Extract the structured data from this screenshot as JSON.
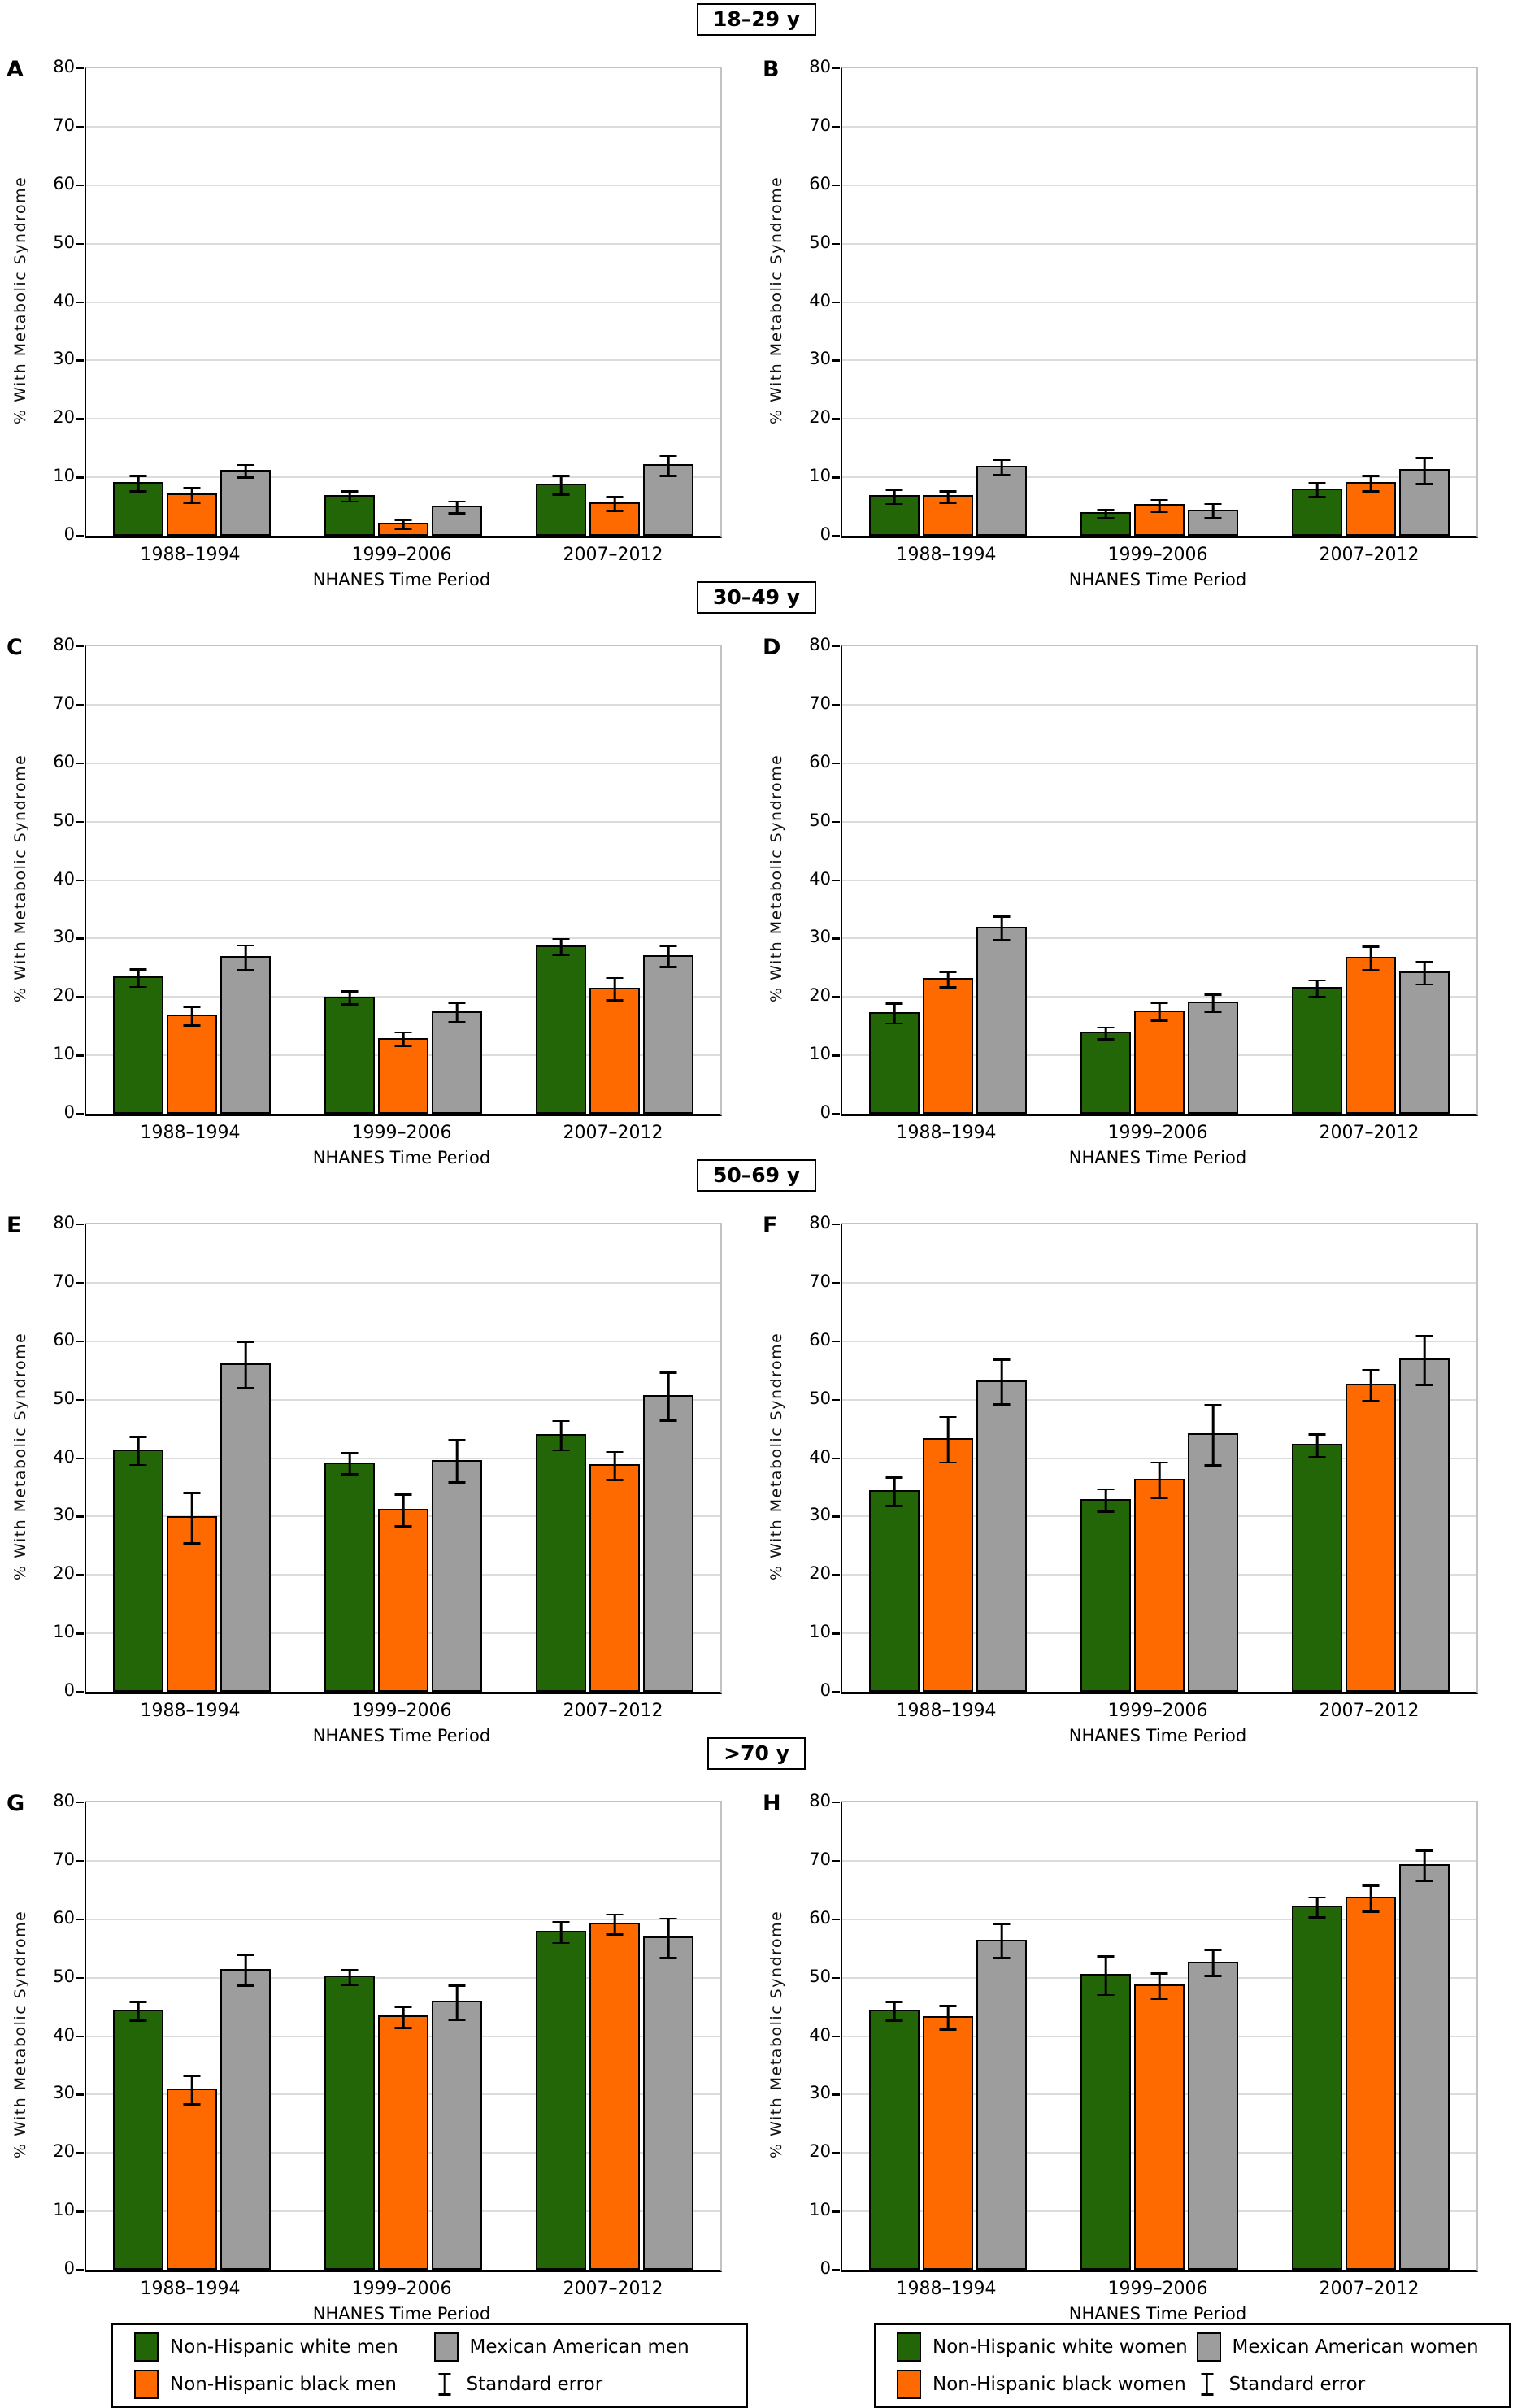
{
  "figure": {
    "sections": [
      {
        "title": "18–29 y"
      },
      {
        "title": "30–49 y"
      },
      {
        "title": "50–69 y"
      },
      {
        "title": ">70 y"
      }
    ],
    "legend_left": {
      "items": [
        {
          "label": "Non-Hispanic white men",
          "color": "#226608"
        },
        {
          "label": "Non-Hispanic black men",
          "color": "#ff6a00"
        },
        {
          "label": "Mexican American men",
          "color": "#9d9d9d"
        },
        {
          "label": "Standard error",
          "glyph": "error-bar-icon"
        }
      ]
    },
    "legend_right": {
      "items": [
        {
          "label": "Non-Hispanic white women",
          "color": "#226608"
        },
        {
          "label": "Non-Hispanic black women",
          "color": "#ff6a00"
        },
        {
          "label": "Mexican American women",
          "color": "#9d9d9d"
        },
        {
          "label": "Standard error",
          "glyph": "error-bar-icon"
        }
      ]
    }
  },
  "chart_data": [
    {
      "type": "bar",
      "panel": "A",
      "age_group": "18–29 y",
      "sex": "men",
      "ylabel": "% With Metabolic Syndrome",
      "xlabel": "NHANES Time Period",
      "ylim": [
        0,
        80
      ],
      "yticks": [
        0,
        10,
        20,
        30,
        40,
        50,
        60,
        70,
        80
      ],
      "grid": "horizontal",
      "categories": [
        "1988–1994",
        "1999–2006",
        "2007–2012"
      ],
      "series": [
        {
          "name": "Non-Hispanic white men",
          "color": "#226608",
          "values": [
            9.2,
            7.0,
            8.9
          ],
          "se": [
            1.3,
            0.9,
            1.6
          ]
        },
        {
          "name": "Non-Hispanic black men",
          "color": "#ff6a00",
          "values": [
            7.2,
            2.2,
            5.7
          ],
          "se": [
            1.3,
            0.8,
            1.2
          ]
        },
        {
          "name": "Mexican American men",
          "color": "#9d9d9d",
          "values": [
            11.3,
            5.1,
            12.2
          ],
          "se": [
            1.1,
            1.0,
            1.7
          ]
        }
      ]
    },
    {
      "type": "bar",
      "panel": "B",
      "age_group": "18–29 y",
      "sex": "women",
      "ylabel": "% With Metabolic Syndrome",
      "xlabel": "NHANES Time Period",
      "ylim": [
        0,
        80
      ],
      "yticks": [
        0,
        10,
        20,
        30,
        40,
        50,
        60,
        70,
        80
      ],
      "grid": "horizontal",
      "categories": [
        "1988–1994",
        "1999–2006",
        "2007–2012"
      ],
      "series": [
        {
          "name": "Non-Hispanic white women",
          "color": "#226608",
          "values": [
            6.9,
            4.0,
            8.1
          ],
          "se": [
            1.2,
            0.7,
            1.2
          ]
        },
        {
          "name": "Non-Hispanic black women",
          "color": "#ff6a00",
          "values": [
            6.9,
            5.4,
            9.2
          ],
          "se": [
            1.0,
            1.0,
            1.3
          ]
        },
        {
          "name": "Mexican American women",
          "color": "#9d9d9d",
          "values": [
            12.0,
            4.5,
            11.4
          ],
          "se": [
            1.3,
            1.2,
            2.2
          ]
        }
      ]
    },
    {
      "type": "bar",
      "panel": "C",
      "age_group": "30–49 y",
      "sex": "men",
      "ylabel": "% With Metabolic Syndrome",
      "xlabel": "NHANES Time Period",
      "ylim": [
        0,
        80
      ],
      "yticks": [
        0,
        10,
        20,
        30,
        40,
        50,
        60,
        70,
        80
      ],
      "grid": "horizontal",
      "categories": [
        "1988–1994",
        "1999–2006",
        "2007–2012"
      ],
      "series": [
        {
          "name": "Non-Hispanic white men",
          "color": "#226608",
          "values": [
            23.5,
            20.1,
            28.8
          ],
          "se": [
            1.5,
            1.1,
            1.4
          ]
        },
        {
          "name": "Non-Hispanic black men",
          "color": "#ff6a00",
          "values": [
            17.0,
            13.0,
            21.6
          ],
          "se": [
            1.6,
            1.2,
            1.9
          ]
        },
        {
          "name": "Mexican American men",
          "color": "#9d9d9d",
          "values": [
            27.0,
            17.6,
            27.2
          ],
          "se": [
            2.1,
            1.6,
            1.8
          ]
        }
      ]
    },
    {
      "type": "bar",
      "panel": "D",
      "age_group": "30–49 y",
      "sex": "women",
      "ylabel": "% With Metabolic Syndrome",
      "xlabel": "NHANES Time Period",
      "ylim": [
        0,
        80
      ],
      "yticks": [
        0,
        10,
        20,
        30,
        40,
        50,
        60,
        70,
        80
      ],
      "grid": "horizontal",
      "categories": [
        "1988–1994",
        "1999–2006",
        "2007–2012"
      ],
      "series": [
        {
          "name": "Non-Hispanic white women",
          "color": "#226608",
          "values": [
            17.4,
            14.0,
            21.7
          ],
          "se": [
            1.7,
            1.0,
            1.4
          ]
        },
        {
          "name": "Non-Hispanic black women",
          "color": "#ff6a00",
          "values": [
            23.2,
            17.7,
            26.9
          ],
          "se": [
            1.3,
            1.5,
            2.0
          ]
        },
        {
          "name": "Mexican American women",
          "color": "#9d9d9d",
          "values": [
            32.0,
            19.2,
            24.3
          ],
          "se": [
            2.0,
            1.5,
            1.9
          ]
        }
      ]
    },
    {
      "type": "bar",
      "panel": "E",
      "age_group": "50–69 y",
      "sex": "men",
      "ylabel": "% With Metabolic Syndrome",
      "xlabel": "NHANES Time Period",
      "ylim": [
        0,
        80
      ],
      "yticks": [
        0,
        10,
        20,
        30,
        40,
        50,
        60,
        70,
        80
      ],
      "grid": "horizontal",
      "categories": [
        "1988–1994",
        "1999–2006",
        "2007–2012"
      ],
      "series": [
        {
          "name": "Non-Hispanic white men",
          "color": "#226608",
          "values": [
            41.5,
            39.3,
            44.1
          ],
          "se": [
            2.4,
            1.8,
            2.5
          ]
        },
        {
          "name": "Non-Hispanic black men",
          "color": "#ff6a00",
          "values": [
            30.0,
            31.3,
            38.9
          ],
          "se": [
            4.3,
            2.7,
            2.4
          ]
        },
        {
          "name": "Mexican American men",
          "color": "#9d9d9d",
          "values": [
            56.2,
            39.7,
            50.8
          ],
          "se": [
            3.9,
            3.6,
            4.1
          ]
        }
      ]
    },
    {
      "type": "bar",
      "panel": "F",
      "age_group": "50–69 y",
      "sex": "women",
      "ylabel": "% With Metabolic Syndrome",
      "xlabel": "NHANES Time Period",
      "ylim": [
        0,
        80
      ],
      "yticks": [
        0,
        10,
        20,
        30,
        40,
        50,
        60,
        70,
        80
      ],
      "grid": "horizontal",
      "categories": [
        "1988–1994",
        "1999–2006",
        "2007–2012"
      ],
      "series": [
        {
          "name": "Non-Hispanic white women",
          "color": "#226608",
          "values": [
            34.5,
            33.0,
            42.4
          ],
          "se": [
            2.4,
            1.9,
            1.9
          ]
        },
        {
          "name": "Non-Hispanic black women",
          "color": "#ff6a00",
          "values": [
            43.4,
            36.5,
            52.7
          ],
          "se": [
            3.9,
            3.0,
            2.7
          ]
        },
        {
          "name": "Mexican American women",
          "color": "#9d9d9d",
          "values": [
            53.3,
            44.2,
            57.0
          ],
          "se": [
            3.8,
            5.2,
            4.2
          ]
        }
      ]
    },
    {
      "type": "bar",
      "panel": "G",
      "age_group": ">70 y",
      "sex": "men",
      "ylabel": "% With Metabolic Syndrome",
      "xlabel": "NHANES Time Period",
      "ylim": [
        0,
        80
      ],
      "yticks": [
        0,
        10,
        20,
        30,
        40,
        50,
        60,
        70,
        80
      ],
      "grid": "horizontal",
      "categories": [
        "1988–1994",
        "1999–2006",
        "2007–2012"
      ],
      "series": [
        {
          "name": "Non-Hispanic white men",
          "color": "#226608",
          "values": [
            44.5,
            50.3,
            58.0
          ],
          "se": [
            1.6,
            1.3,
            1.8
          ]
        },
        {
          "name": "Non-Hispanic black men",
          "color": "#ff6a00",
          "values": [
            31.0,
            43.5,
            59.4
          ],
          "se": [
            2.4,
            1.8,
            1.7
          ]
        },
        {
          "name": "Mexican American men",
          "color": "#9d9d9d",
          "values": [
            51.5,
            46.0,
            57.0
          ],
          "se": [
            2.6,
            2.9,
            3.4
          ]
        }
      ]
    },
    {
      "type": "bar",
      "panel": "H",
      "age_group": ">70 y",
      "sex": "women",
      "ylabel": "% With Metabolic Syndrome",
      "xlabel": "NHANES Time Period",
      "ylim": [
        0,
        80
      ],
      "yticks": [
        0,
        10,
        20,
        30,
        40,
        50,
        60,
        70,
        80
      ],
      "grid": "horizontal",
      "categories": [
        "1988–1994",
        "1999–2006",
        "2007–2012"
      ],
      "series": [
        {
          "name": "Non-Hispanic white women",
          "color": "#226608",
          "values": [
            44.5,
            50.6,
            62.3
          ],
          "se": [
            1.6,
            3.3,
            1.7
          ]
        },
        {
          "name": "Non-Hispanic black women",
          "color": "#ff6a00",
          "values": [
            43.4,
            48.8,
            63.8
          ],
          "se": [
            2.0,
            2.2,
            2.2
          ]
        },
        {
          "name": "Mexican American women",
          "color": "#9d9d9d",
          "values": [
            56.5,
            52.8,
            69.4
          ],
          "se": [
            2.9,
            2.2,
            2.6
          ]
        }
      ]
    }
  ]
}
